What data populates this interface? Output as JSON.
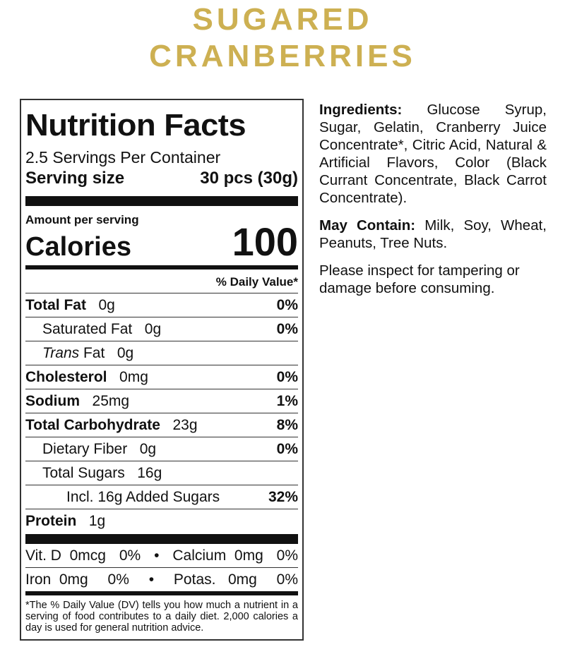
{
  "product": {
    "title_line1": "SUGARED",
    "title_line2": "CRANBERRIES",
    "brand_color": "#cdb052"
  },
  "nutrition": {
    "heading": "Nutrition Facts",
    "servings_per_container": "2.5 Servings Per Container",
    "serving_size_label": "Serving size",
    "serving_size_value": "30 pcs (30g)",
    "amount_per_serving": "Amount per serving",
    "calories_label": "Calories",
    "calories_value": "100",
    "dv_header": "% Daily Value*",
    "rows": [
      {
        "name": "Total Fat",
        "amount": "0g",
        "dv": "0%",
        "bold": true,
        "indent": 0
      },
      {
        "name": "Saturated Fat",
        "amount": "0g",
        "dv": "0%",
        "bold": false,
        "indent": 1
      },
      {
        "name": "Trans",
        "name_suffix": " Fat",
        "amount": "0g",
        "dv": "",
        "bold": false,
        "indent": 1
      },
      {
        "name": "Cholesterol",
        "amount": "0mg",
        "dv": "0%",
        "bold": true,
        "indent": 0
      },
      {
        "name": "Sodium",
        "amount": "25mg",
        "dv": "1%",
        "bold": true,
        "indent": 0
      },
      {
        "name": "Total Carbohydrate",
        "amount": "23g",
        "dv": "8%",
        "bold": true,
        "indent": 0
      },
      {
        "name": "Dietary Fiber",
        "amount": "0g",
        "dv": "0%",
        "bold": false,
        "indent": 1
      },
      {
        "name": "Total Sugars",
        "amount": "16g",
        "dv": "",
        "bold": false,
        "indent": 1
      },
      {
        "name": "Incl. 16g Added Sugars",
        "amount": "",
        "dv": "32%",
        "bold": false,
        "indent": 2
      },
      {
        "name": "Protein",
        "amount": "1g",
        "dv": "",
        "bold": true,
        "indent": 0
      }
    ],
    "vitamins": [
      {
        "left": "Vit. D  0mcg",
        "left_dv": "0%",
        "right": "Calcium  0mg",
        "right_dv": "0%"
      },
      {
        "left": "Iron  0mg",
        "left_dv": "0%",
        "right": "Potas.   0mg",
        "right_dv": "0%"
      }
    ],
    "footnote": "*The % Daily Value (DV) tells you how much a nutrient in a serving of food contributes to a daily diet. 2,000 calories a day is used for general nutrition advice."
  },
  "info": {
    "ingredients_label": "Ingredients:",
    "ingredients_text": " Glucose Syrup, Sugar, Gelatin, Cranberry Juice Concentrate*, Citric Acid, Natural & Artificial Flavors, Color (Black Currant Concentrate, Black Carrot Concentrate).",
    "allergen_label": "May Contain:",
    "allergen_text": " Milk, Soy, Wheat, Peanuts, Tree Nuts.",
    "notice": "Please inspect for tampering or damage before consuming."
  }
}
